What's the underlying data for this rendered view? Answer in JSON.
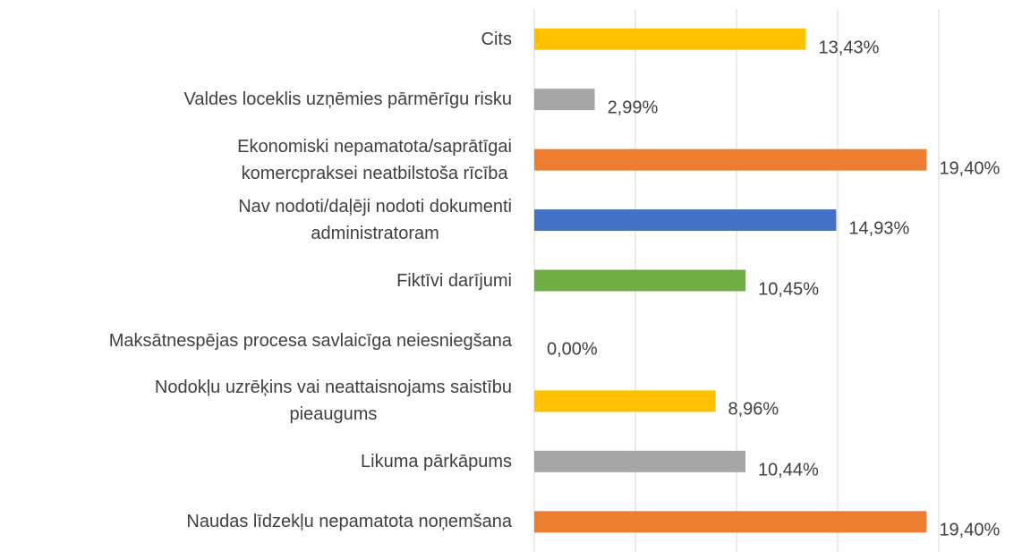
{
  "chart_data": {
    "type": "barh",
    "categories": [
      "Cits",
      "Valdes loceklis uzņēmies pārmērīgu risku",
      "Ekonomiski nepamatota/saprātīgai\nkomercpraksei neatbilstoša rīcība",
      "Nav nodoti/daļēji nodoti dokumenti\nadministratoram",
      "Fiktīvi darījumi",
      "Maksātnespējas procesa savlaicīga neiesniegšana",
      "Nodokļu uzrēķins vai neattaisnojams saistību\npieaugums",
      "Likuma pārkāpums",
      "Naudas līdzekļu nepamatota noņemšana"
    ],
    "values": [
      13.43,
      2.99,
      19.4,
      14.93,
      10.45,
      0.0,
      8.96,
      10.44,
      19.4
    ],
    "value_labels": [
      "13,43%",
      "2,99%",
      "19,40%",
      "14,93%",
      "10,45%",
      "0,00%",
      "8,96%",
      "10,44%",
      "19,40%"
    ],
    "colors": [
      "#ffc000",
      "#a5a5a5",
      "#ed7d31",
      "#4472c4",
      "#70ad47",
      "#5b9bd5",
      "#ffc000",
      "#a5a5a5",
      "#ed7d31"
    ],
    "xlim": [
      0,
      20
    ],
    "xticks": [
      0,
      5,
      10,
      15,
      20
    ],
    "grid": true
  }
}
